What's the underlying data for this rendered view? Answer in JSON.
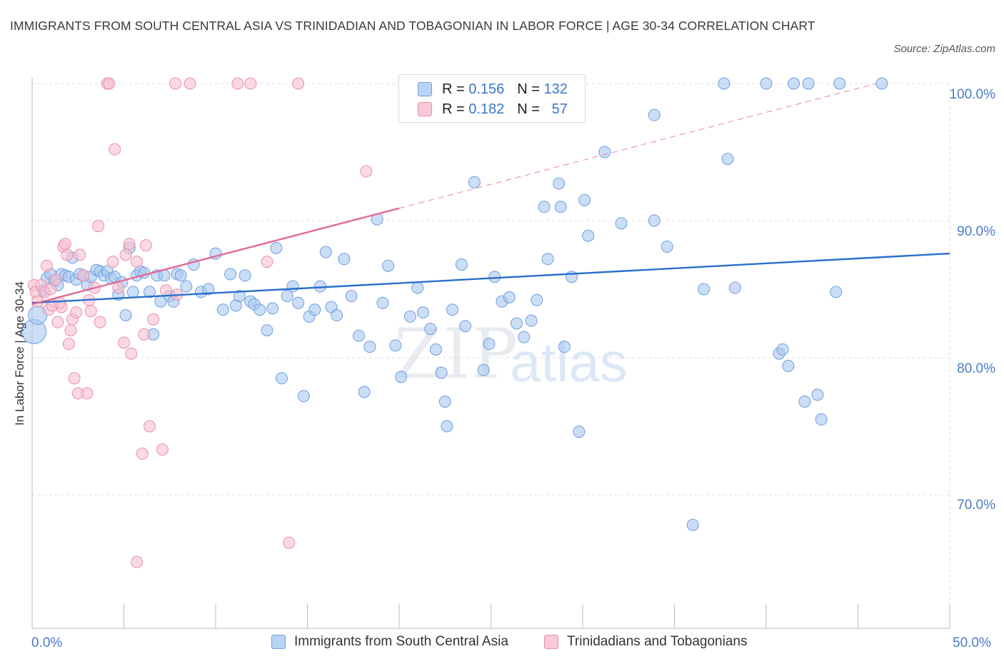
{
  "header": {
    "title": "IMMIGRANTS FROM SOUTH CENTRAL ASIA VS TRINIDADIAN AND TOBAGONIAN IN LABOR FORCE | AGE 30-34 CORRELATION CHART",
    "source": "Source: ZipAtlas.com"
  },
  "legend_top": {
    "blue": {
      "r_label": "R =",
      "r_value": "0.156",
      "n_label": "N =",
      "n_value": "132"
    },
    "pink": {
      "r_label": "R =",
      "r_value": "0.182",
      "n_label": "N =",
      "n_value": "57"
    }
  },
  "watermark": {
    "zip": "ZIP",
    "atlas": "atlas"
  },
  "colors": {
    "blue_fill": "#a9c8f0",
    "blue_stroke": "#6f9fdc",
    "blue_line": "#2a6fcc",
    "pink_fill": "#f6bfd0",
    "pink_stroke": "#ec8fab",
    "pink_line": "#e06b94",
    "tick_text": "#4a7cc9",
    "grid": "#dcdcdc"
  },
  "chart_data": {
    "type": "scatter",
    "title": "IMMIGRANTS FROM SOUTH CENTRAL ASIA VS TRINIDADIAN AND TOBAGONIAN IN LABOR FORCE | AGE 30-34 CORRELATION CHART",
    "xlabel": "",
    "ylabel": "In Labor Force | Age 30-34",
    "xlim": [
      0,
      50
    ],
    "ylim": [
      60,
      100
    ],
    "x_tick_labels": [
      "0.0%",
      "50.0%"
    ],
    "y_tick_labels": [
      "100.0%",
      "90.0%",
      "80.0%",
      "70.0%"
    ],
    "y_ticks": [
      100,
      90,
      80,
      70
    ],
    "grid": true,
    "legend_placement": "bottom",
    "series": [
      {
        "name": "Immigrants from South Central Asia",
        "color": "#a9c8f0",
        "trend": {
          "x": [
            0,
            50
          ],
          "y": [
            84.0,
            87.6
          ]
        },
        "points": [
          [
            0.1,
            81.9
          ],
          [
            0.3,
            83.1
          ],
          [
            0.6,
            84.9
          ],
          [
            0.8,
            85.8
          ],
          [
            1.0,
            86.1
          ],
          [
            1.2,
            85.6
          ],
          [
            1.4,
            85.3
          ],
          [
            1.6,
            86.1
          ],
          [
            1.8,
            86.0
          ],
          [
            2.0,
            85.9
          ],
          [
            2.2,
            87.3
          ],
          [
            2.4,
            85.7
          ],
          [
            2.6,
            86.1
          ],
          [
            2.8,
            86.0
          ],
          [
            3.0,
            85.3
          ],
          [
            3.2,
            85.9
          ],
          [
            3.5,
            86.4
          ],
          [
            3.7,
            86.3
          ],
          [
            3.9,
            86.0
          ],
          [
            4.1,
            86.3
          ],
          [
            4.3,
            85.8
          ],
          [
            4.5,
            85.9
          ],
          [
            4.7,
            84.6
          ],
          [
            4.9,
            85.5
          ],
          [
            5.1,
            83.1
          ],
          [
            5.3,
            88.0
          ],
          [
            5.5,
            84.8
          ],
          [
            5.7,
            86.0
          ],
          [
            5.9,
            86.3
          ],
          [
            6.1,
            86.2
          ],
          [
            6.4,
            84.8
          ],
          [
            6.6,
            81.7
          ],
          [
            6.8,
            86.0
          ],
          [
            7.0,
            84.1
          ],
          [
            7.2,
            86.0
          ],
          [
            7.5,
            84.5
          ],
          [
            7.7,
            84.1
          ],
          [
            7.9,
            86.1
          ],
          [
            8.1,
            86.0
          ],
          [
            8.4,
            85.2
          ],
          [
            8.8,
            86.8
          ],
          [
            9.2,
            84.8
          ],
          [
            9.6,
            85.0
          ],
          [
            10.0,
            87.6
          ],
          [
            10.4,
            83.5
          ],
          [
            10.8,
            86.1
          ],
          [
            11.1,
            83.8
          ],
          [
            11.3,
            84.5
          ],
          [
            11.6,
            86.0
          ],
          [
            11.9,
            84.1
          ],
          [
            12.1,
            83.9
          ],
          [
            12.4,
            83.5
          ],
          [
            12.8,
            82.0
          ],
          [
            13.1,
            83.6
          ],
          [
            13.3,
            88.0
          ],
          [
            13.6,
            78.5
          ],
          [
            13.9,
            84.5
          ],
          [
            14.2,
            85.2
          ],
          [
            14.5,
            84.0
          ],
          [
            14.8,
            77.2
          ],
          [
            15.1,
            83.0
          ],
          [
            15.4,
            83.5
          ],
          [
            15.7,
            85.2
          ],
          [
            16.0,
            87.7
          ],
          [
            16.3,
            83.7
          ],
          [
            16.6,
            83.1
          ],
          [
            17.0,
            87.2
          ],
          [
            17.4,
            84.5
          ],
          [
            17.8,
            81.6
          ],
          [
            18.1,
            77.5
          ],
          [
            18.4,
            80.8
          ],
          [
            18.8,
            90.1
          ],
          [
            19.1,
            84.0
          ],
          [
            19.4,
            86.7
          ],
          [
            19.8,
            80.9
          ],
          [
            20.1,
            78.6
          ],
          [
            20.6,
            83.0
          ],
          [
            21.0,
            85.1
          ],
          [
            21.3,
            83.3
          ],
          [
            21.7,
            82.1
          ],
          [
            22.0,
            80.6
          ],
          [
            22.3,
            78.9
          ],
          [
            22.5,
            76.8
          ],
          [
            22.6,
            75.0
          ],
          [
            22.9,
            83.5
          ],
          [
            23.4,
            86.8
          ],
          [
            23.6,
            82.3
          ],
          [
            24.1,
            92.8
          ],
          [
            24.6,
            79.1
          ],
          [
            24.9,
            81.0
          ],
          [
            25.2,
            85.9
          ],
          [
            25.6,
            84.1
          ],
          [
            26.0,
            84.4
          ],
          [
            26.4,
            82.5
          ],
          [
            26.8,
            81.5
          ],
          [
            27.2,
            82.7
          ],
          [
            27.5,
            84.2
          ],
          [
            27.9,
            91.0
          ],
          [
            28.1,
            87.2
          ],
          [
            28.7,
            92.7
          ],
          [
            28.8,
            91.0
          ],
          [
            29.0,
            80.8
          ],
          [
            29.4,
            85.9
          ],
          [
            29.8,
            74.6
          ],
          [
            30.1,
            91.5
          ],
          [
            30.3,
            88.9
          ],
          [
            31.2,
            95.0
          ],
          [
            32.1,
            89.8
          ],
          [
            33.9,
            97.7
          ],
          [
            33.9,
            90.0
          ],
          [
            34.6,
            88.1
          ],
          [
            36.0,
            67.8
          ],
          [
            36.6,
            85.0
          ],
          [
            37.7,
            100.0
          ],
          [
            37.9,
            94.5
          ],
          [
            38.3,
            85.1
          ],
          [
            40.0,
            100.0
          ],
          [
            40.7,
            80.3
          ],
          [
            40.9,
            80.6
          ],
          [
            41.2,
            79.4
          ],
          [
            41.5,
            100.0
          ],
          [
            42.1,
            76.8
          ],
          [
            42.3,
            100.0
          ],
          [
            42.8,
            77.3
          ],
          [
            43.0,
            75.5
          ],
          [
            44.0,
            100.0
          ],
          [
            46.3,
            100.0
          ],
          [
            43.8,
            84.8
          ]
        ]
      },
      {
        "name": "Trinidadians and Tobagonians",
        "color": "#f6bfd0",
        "trend": {
          "x": [
            0,
            20
          ],
          "y": [
            83.9,
            90.9
          ]
        },
        "trend_extension": {
          "x": [
            20,
            46
          ],
          "y": [
            90.9,
            100.0
          ]
        },
        "points": [
          [
            0.1,
            85.3
          ],
          [
            0.2,
            84.8
          ],
          [
            0.3,
            84.1
          ],
          [
            0.5,
            85.3
          ],
          [
            0.7,
            84.8
          ],
          [
            0.8,
            86.7
          ],
          [
            0.9,
            83.5
          ],
          [
            1.0,
            85.0
          ],
          [
            1.1,
            83.8
          ],
          [
            1.3,
            85.7
          ],
          [
            1.4,
            82.6
          ],
          [
            1.6,
            83.7
          ],
          [
            1.7,
            88.1
          ],
          [
            1.8,
            88.3
          ],
          [
            1.9,
            87.5
          ],
          [
            2.0,
            81.0
          ],
          [
            2.1,
            82.0
          ],
          [
            2.2,
            82.8
          ],
          [
            2.3,
            78.5
          ],
          [
            2.5,
            77.4
          ],
          [
            2.6,
            87.5
          ],
          [
            2.8,
            86.0
          ],
          [
            3.0,
            77.4
          ],
          [
            3.1,
            84.2
          ],
          [
            3.2,
            83.4
          ],
          [
            3.4,
            85.1
          ],
          [
            3.6,
            89.6
          ],
          [
            3.7,
            82.6
          ],
          [
            4.1,
            100.0
          ],
          [
            4.2,
            100.0
          ],
          [
            4.4,
            87.0
          ],
          [
            4.7,
            85.1
          ],
          [
            5.0,
            81.1
          ],
          [
            5.1,
            87.5
          ],
          [
            5.3,
            88.3
          ],
          [
            5.4,
            80.3
          ],
          [
            5.7,
            87.0
          ],
          [
            6.0,
            73.0
          ],
          [
            6.1,
            81.7
          ],
          [
            6.2,
            88.2
          ],
          [
            6.4,
            75.0
          ],
          [
            6.6,
            82.8
          ],
          [
            7.1,
            73.3
          ],
          [
            7.3,
            84.9
          ],
          [
            7.8,
            100.0
          ],
          [
            7.9,
            84.6
          ],
          [
            8.6,
            100.0
          ],
          [
            11.2,
            100.0
          ],
          [
            11.9,
            100.0
          ],
          [
            12.8,
            87.0
          ],
          [
            14.0,
            66.5
          ],
          [
            14.5,
            100.0
          ],
          [
            18.2,
            93.6
          ],
          [
            5.7,
            65.1
          ],
          [
            4.5,
            95.2
          ],
          [
            1.5,
            84.0
          ],
          [
            2.4,
            83.3
          ]
        ]
      }
    ]
  },
  "legend_bottom": [
    {
      "label": "Immigrants from South Central Asia"
    },
    {
      "label": "Trinidadians and Tobagonians"
    }
  ]
}
